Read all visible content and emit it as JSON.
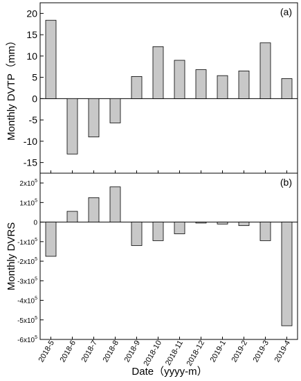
{
  "chart_data": [
    {
      "type": "bar",
      "panel_label": "(a)",
      "ylabel": "Monthly DVTP（mm）",
      "ylim": [
        -17.5,
        22.5
      ],
      "yticks": [
        20,
        15,
        10,
        5,
        0,
        -5,
        -10,
        -15
      ],
      "ytick_labels": [
        "20",
        "15",
        "10",
        "5",
        "0",
        "-5",
        "-10",
        "-15"
      ],
      "categories": [
        "2018-5",
        "2018-6",
        "2018-7",
        "2018-8",
        "2018-9",
        "2018-10",
        "2018-11",
        "2018-12",
        "2019-1",
        "2019-2",
        "2019-3",
        "2019-4"
      ],
      "values": [
        18.4,
        -13.0,
        -9.0,
        -5.7,
        5.2,
        12.2,
        9.0,
        6.8,
        5.4,
        6.5,
        13.1,
        4.7
      ],
      "bar_color": "#c8c8c8"
    },
    {
      "type": "bar",
      "panel_label": "(b)",
      "ylabel": "Monthly DVRS",
      "ylim": [
        -600000,
        250000
      ],
      "yticks": [
        200000,
        100000,
        0,
        -100000,
        -200000,
        -300000,
        -400000,
        -500000,
        -600000
      ],
      "ytick_labels": [
        {
          "base": "2x10",
          "exp": "5"
        },
        {
          "base": "1x10",
          "exp": "5"
        },
        {
          "base": "0",
          "exp": ""
        },
        {
          "base": "-1x10",
          "exp": "5"
        },
        {
          "base": "-2x10",
          "exp": "5"
        },
        {
          "base": "-3x10",
          "exp": "5"
        },
        {
          "base": "-4x10",
          "exp": "5"
        },
        {
          "base": "-5x10",
          "exp": "5"
        },
        {
          "base": "-6x10",
          "exp": "5"
        }
      ],
      "categories": [
        "2018-5",
        "2018-6",
        "2018-7",
        "2018-8",
        "2018-9",
        "2018-10",
        "2018-11",
        "2018-12",
        "2019-1",
        "2019-2",
        "2019-3",
        "2019-4"
      ],
      "values": [
        -175000,
        55000,
        125000,
        180000,
        -120000,
        -95000,
        -60000,
        -5000,
        -10000,
        -18000,
        -95000,
        -530000
      ],
      "bar_color": "#c8c8c8"
    }
  ],
  "xlabel": "Date（yyyy-m）"
}
